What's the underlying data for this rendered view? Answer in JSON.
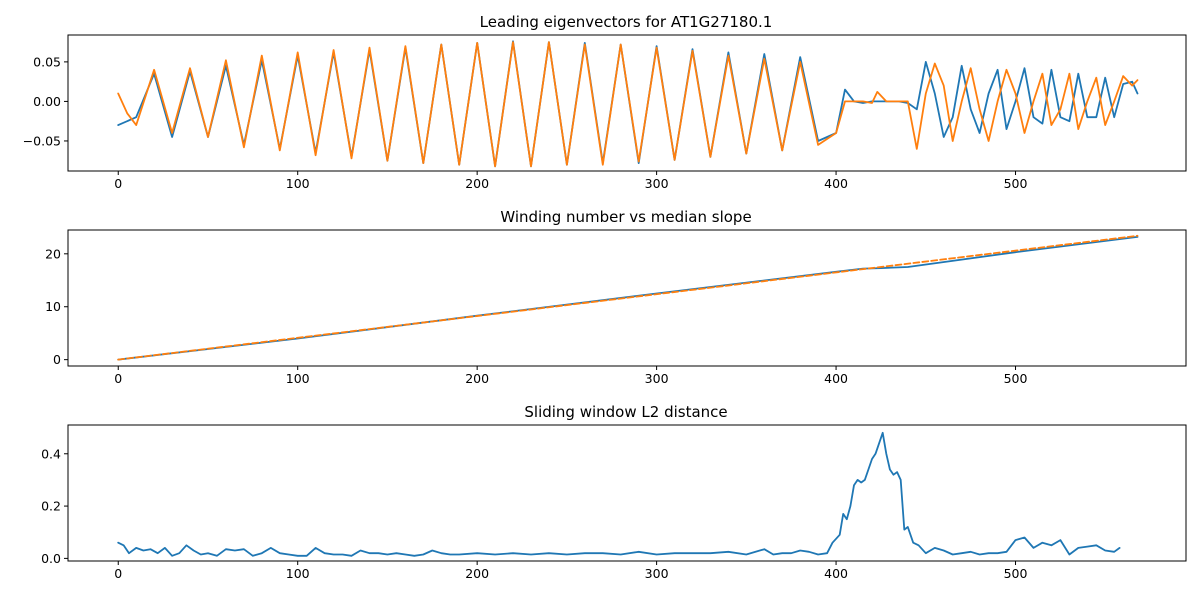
{
  "chart_data": [
    {
      "type": "line",
      "title": "Leading eigenvectors for AT1G27180.1",
      "xlim": [
        -28,
        595
      ],
      "ylim": [
        -0.088,
        0.084
      ],
      "xticks": [
        0,
        100,
        200,
        300,
        400,
        500
      ],
      "yticks": [
        -0.05,
        0.0,
        0.05
      ],
      "ytick_labels": [
        "−0.05",
        "0.00",
        "0.05"
      ],
      "series": [
        {
          "color": "#1f77b4",
          "x": [
            0,
            10,
            20,
            30,
            40,
            50,
            60,
            70,
            80,
            90,
            100,
            110,
            120,
            130,
            140,
            150,
            160,
            170,
            180,
            190,
            200,
            210,
            220,
            230,
            240,
            250,
            260,
            270,
            280,
            290,
            300,
            310,
            320,
            330,
            340,
            350,
            360,
            370,
            380,
            390,
            400,
            405,
            410,
            415,
            420,
            425,
            430,
            435,
            440,
            445,
            450,
            455,
            460,
            465,
            470,
            475,
            480,
            485,
            490,
            495,
            500,
            505,
            510,
            515,
            520,
            525,
            530,
            535,
            540,
            545,
            550,
            555,
            560,
            565,
            568
          ],
          "y": [
            -0.03,
            -0.02,
            0.035,
            -0.045,
            0.038,
            -0.045,
            0.045,
            -0.055,
            0.052,
            -0.06,
            0.058,
            -0.065,
            0.062,
            -0.07,
            0.065,
            -0.075,
            0.068,
            -0.078,
            0.072,
            -0.08,
            0.074,
            -0.082,
            0.076,
            -0.082,
            0.075,
            -0.08,
            0.074,
            -0.078,
            0.072,
            -0.078,
            0.07,
            -0.074,
            0.066,
            -0.07,
            0.062,
            -0.066,
            0.06,
            -0.062,
            0.056,
            -0.05,
            -0.04,
            0.015,
            0.0,
            -0.002,
            0.0,
            0.0,
            0.0,
            0.0,
            -0.002,
            -0.01,
            0.05,
            0.01,
            -0.045,
            -0.02,
            0.045,
            -0.01,
            -0.04,
            0.01,
            0.04,
            -0.035,
            0.0,
            0.042,
            -0.02,
            -0.028,
            0.04,
            -0.02,
            -0.025,
            0.035,
            -0.02,
            -0.02,
            0.03,
            -0.02,
            0.022,
            0.025,
            0.01
          ]
        },
        {
          "color": "#ff7f0e",
          "x": [
            0,
            5,
            10,
            20,
            30,
            40,
            50,
            60,
            70,
            80,
            90,
            100,
            110,
            120,
            130,
            140,
            150,
            160,
            170,
            180,
            190,
            200,
            210,
            220,
            230,
            240,
            250,
            260,
            270,
            280,
            290,
            300,
            310,
            320,
            330,
            340,
            350,
            360,
            370,
            380,
            390,
            400,
            405,
            410,
            415,
            420,
            423,
            428,
            435,
            440,
            445,
            450,
            455,
            460,
            465,
            470,
            475,
            480,
            485,
            490,
            495,
            500,
            505,
            510,
            515,
            520,
            525,
            530,
            535,
            540,
            545,
            550,
            555,
            560,
            565,
            568
          ],
          "y": [
            0.01,
            -0.015,
            -0.03,
            0.04,
            -0.04,
            0.042,
            -0.045,
            0.052,
            -0.058,
            0.058,
            -0.062,
            0.062,
            -0.068,
            0.065,
            -0.072,
            0.068,
            -0.075,
            0.07,
            -0.078,
            0.072,
            -0.08,
            0.074,
            -0.082,
            0.075,
            -0.082,
            0.075,
            -0.08,
            0.072,
            -0.08,
            0.072,
            -0.076,
            0.068,
            -0.074,
            0.064,
            -0.07,
            0.058,
            -0.066,
            0.054,
            -0.062,
            0.05,
            -0.055,
            -0.04,
            0.0,
            0.0,
            0.0,
            -0.002,
            0.012,
            0.0,
            0.0,
            0.0,
            -0.06,
            0.01,
            0.048,
            0.02,
            -0.05,
            0.0,
            0.042,
            -0.01,
            -0.05,
            0.0,
            0.04,
            0.01,
            -0.04,
            0.0,
            0.035,
            -0.03,
            -0.01,
            0.035,
            -0.035,
            0.0,
            0.03,
            -0.03,
            0.0,
            0.032,
            0.02,
            0.027
          ]
        }
      ]
    },
    {
      "type": "line",
      "title": "Winding number vs median slope",
      "xlim": [
        -28,
        595
      ],
      "ylim": [
        -1.2,
        24.5
      ],
      "xticks": [
        0,
        100,
        200,
        300,
        400,
        500
      ],
      "yticks": [
        0,
        10,
        20
      ],
      "ytick_labels": [
        "0",
        "10",
        "20"
      ],
      "series": [
        {
          "color": "#1f77b4",
          "x": [
            0,
            100,
            200,
            300,
            400,
            415,
            425,
            440,
            500,
            568
          ],
          "y": [
            0,
            4.0,
            8.3,
            12.5,
            16.6,
            17.2,
            17.3,
            17.5,
            20.3,
            23.2
          ],
          "style": "solid"
        },
        {
          "color": "#ff7f0e",
          "x": [
            0,
            568
          ],
          "y": [
            0,
            23.4
          ],
          "style": "dashed"
        }
      ]
    },
    {
      "type": "line",
      "title": "Sliding window L2 distance",
      "xlim": [
        -28,
        595
      ],
      "ylim": [
        -0.01,
        0.51
      ],
      "xticks": [
        0,
        100,
        200,
        300,
        400,
        500
      ],
      "yticks": [
        0.0,
        0.2,
        0.4
      ],
      "ytick_labels": [
        "0.0",
        "0.2",
        "0.4"
      ],
      "series": [
        {
          "color": "#1f77b4",
          "x": [
            0,
            3,
            6,
            10,
            14,
            18,
            22,
            26,
            30,
            34,
            38,
            42,
            46,
            50,
            55,
            60,
            65,
            70,
            75,
            80,
            85,
            90,
            95,
            100,
            105,
            110,
            115,
            120,
            125,
            130,
            135,
            140,
            145,
            150,
            155,
            160,
            165,
            170,
            175,
            180,
            185,
            190,
            200,
            210,
            220,
            230,
            240,
            250,
            260,
            270,
            280,
            290,
            300,
            310,
            320,
            330,
            340,
            350,
            360,
            365,
            370,
            375,
            380,
            385,
            390,
            395,
            398,
            402,
            404,
            406,
            408,
            410,
            412,
            414,
            416,
            418,
            420,
            422,
            424,
            426,
            428,
            430,
            432,
            434,
            436,
            438,
            440,
            443,
            446,
            450,
            455,
            460,
            465,
            470,
            475,
            480,
            485,
            490,
            495,
            500,
            505,
            510,
            515,
            520,
            525,
            530,
            535,
            540,
            545,
            550,
            555,
            558
          ],
          "y": [
            0.06,
            0.05,
            0.02,
            0.04,
            0.03,
            0.035,
            0.02,
            0.04,
            0.01,
            0.02,
            0.05,
            0.03,
            0.015,
            0.02,
            0.01,
            0.035,
            0.03,
            0.035,
            0.01,
            0.02,
            0.04,
            0.02,
            0.015,
            0.01,
            0.01,
            0.04,
            0.02,
            0.015,
            0.015,
            0.01,
            0.03,
            0.02,
            0.02,
            0.015,
            0.02,
            0.015,
            0.01,
            0.015,
            0.03,
            0.02,
            0.015,
            0.015,
            0.02,
            0.015,
            0.02,
            0.015,
            0.02,
            0.015,
            0.02,
            0.02,
            0.015,
            0.025,
            0.015,
            0.02,
            0.02,
            0.02,
            0.025,
            0.015,
            0.035,
            0.015,
            0.02,
            0.02,
            0.03,
            0.025,
            0.015,
            0.02,
            0.06,
            0.09,
            0.17,
            0.15,
            0.2,
            0.28,
            0.3,
            0.29,
            0.3,
            0.34,
            0.38,
            0.4,
            0.44,
            0.48,
            0.4,
            0.34,
            0.32,
            0.33,
            0.3,
            0.11,
            0.12,
            0.06,
            0.05,
            0.02,
            0.04,
            0.03,
            0.015,
            0.02,
            0.025,
            0.015,
            0.02,
            0.02,
            0.025,
            0.07,
            0.08,
            0.04,
            0.06,
            0.05,
            0.07,
            0.015,
            0.04,
            0.045,
            0.05,
            0.03,
            0.025,
            0.04
          ]
        }
      ]
    }
  ]
}
